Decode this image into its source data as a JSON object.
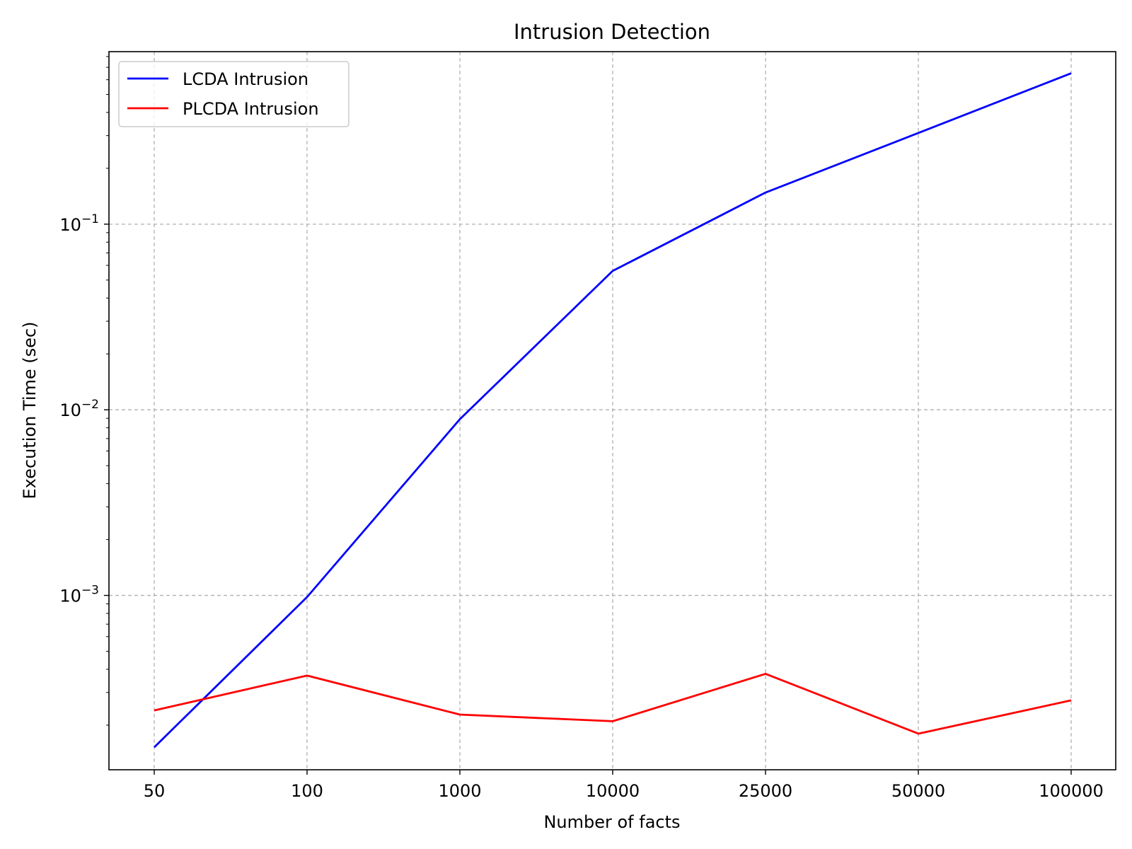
{
  "chart_data": {
    "type": "line",
    "title": "Intrusion Detection",
    "xlabel": "Number of facts",
    "ylabel": "Execution Time (sec)",
    "x_scale": "categorical",
    "y_scale": "log",
    "categories": [
      "50",
      "100",
      "1000",
      "10000",
      "25000",
      "50000",
      "100000"
    ],
    "ylim": [
      0.000115,
      0.85
    ],
    "y_ticks": [
      {
        "value": 0.001,
        "base": "10",
        "exp": "−3"
      },
      {
        "value": 0.01,
        "base": "10",
        "exp": "−2"
      },
      {
        "value": 0.1,
        "base": "10",
        "exp": "−1"
      }
    ],
    "grid": true,
    "legend_position": "upper-left",
    "series": [
      {
        "name": "LCDA Intrusion",
        "color": "#0000ff",
        "values": [
          0.000152,
          0.00098,
          0.0089,
          0.056,
          0.148,
          0.31,
          0.65
        ]
      },
      {
        "name": "PLCDA Intrusion",
        "color": "#ff0000",
        "values": [
          0.00024,
          0.00037,
          0.000228,
          0.00021,
          0.000378,
          0.00018,
          0.000272
        ]
      }
    ]
  }
}
